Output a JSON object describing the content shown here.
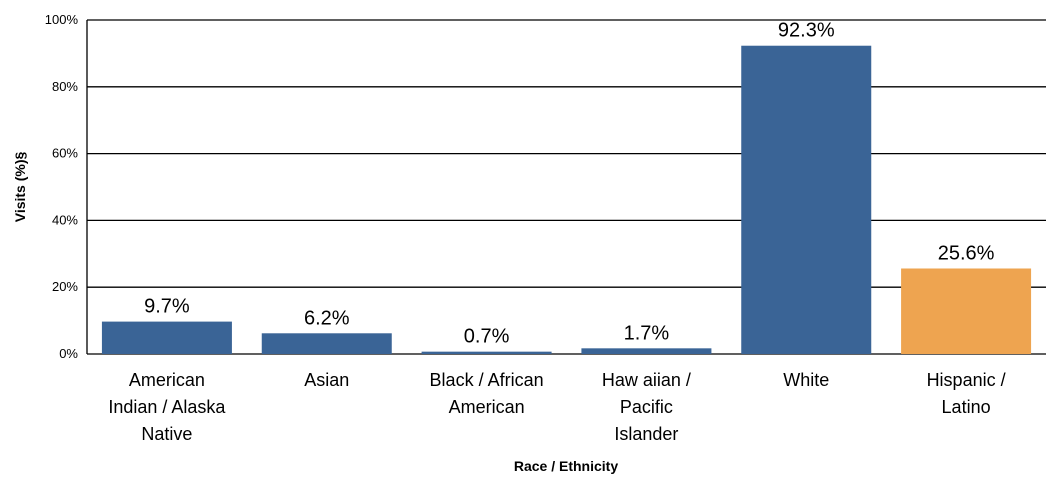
{
  "chart_data": {
    "type": "bar",
    "xlabel": "Race / Ethnicity",
    "ylabel": "Visits (%)§",
    "ylim": [
      0,
      100
    ],
    "yticks": [
      "0%",
      "20%",
      "40%",
      "60%",
      "80%",
      "100%"
    ],
    "grid": true,
    "categories": [
      "American Indian / Alaska Native",
      "Asian",
      "Black / African American",
      "Hawaiian / Pacific Islander",
      "White",
      "Hispanic / Latino"
    ],
    "category_lines": [
      [
        "American",
        "Indian / Alaska",
        "Native"
      ],
      [
        "Asian"
      ],
      [
        "Black / African",
        "American"
      ],
      [
        "Haw aiian /",
        "Pacific",
        "Islander"
      ],
      [
        "White"
      ],
      [
        "Hispanic /",
        "Latino"
      ]
    ],
    "values": [
      9.7,
      6.2,
      0.7,
      1.7,
      92.3,
      25.6
    ],
    "data_labels": [
      "9.7%",
      "6.2%",
      "0.7%",
      "1.7%",
      "92.3%",
      "25.6%"
    ],
    "colors": [
      "#3a6496",
      "#3a6496",
      "#3a6496",
      "#3a6496",
      "#3a6496",
      "#eea450"
    ]
  }
}
